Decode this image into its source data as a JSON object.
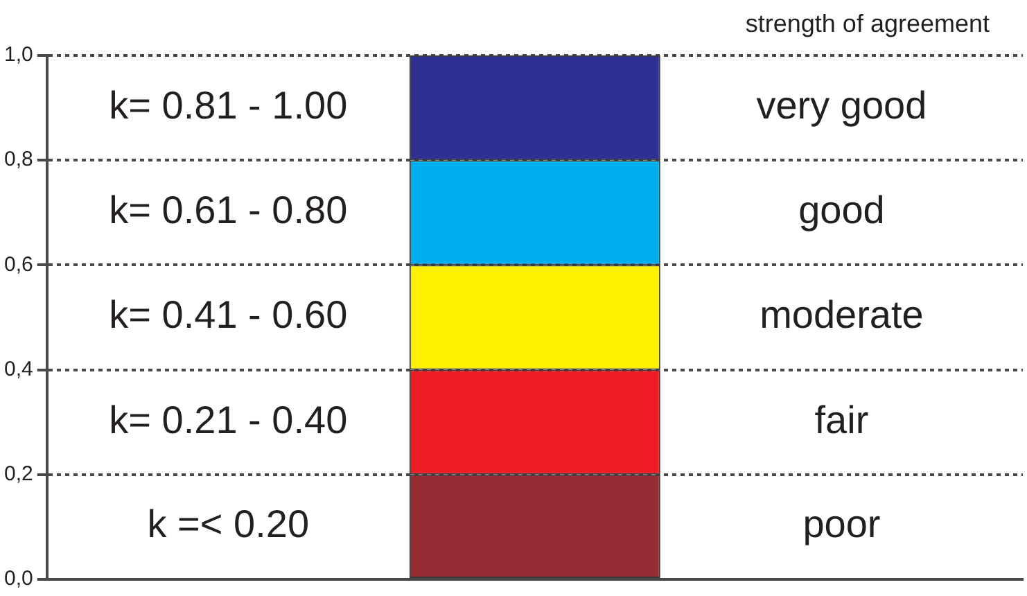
{
  "chart_data": {
    "type": "bar",
    "stacked": true,
    "title": "strength of agreement",
    "categories": [
      null
    ],
    "series": [
      {
        "name": "poor",
        "color": "#952d32",
        "values": [
          0.2
        ]
      },
      {
        "name": "fair",
        "color": "#ed1c24",
        "values": [
          0.2
        ]
      },
      {
        "name": "moderate",
        "color": "#fff200",
        "values": [
          0.2
        ]
      },
      {
        "name": "good",
        "color": "#00aeef",
        "values": [
          0.2
        ]
      },
      {
        "name": "very good",
        "color": "#2e3192",
        "values": [
          0.2
        ]
      }
    ],
    "ylim": [
      0,
      1
    ],
    "yticks": [
      {
        "value": 0,
        "label": "0,0"
      },
      {
        "value": 0.2,
        "label": "0,2"
      },
      {
        "value": 0.4,
        "label": "0,4"
      },
      {
        "value": 0.6,
        "label": "0,6"
      },
      {
        "value": 0.8,
        "label": "0,8"
      },
      {
        "value": 1,
        "label": "1,0"
      }
    ],
    "grid": "y",
    "line_style": "dotted",
    "legend": false,
    "tick_labels": "y",
    "annotations": [
      "k= 0.81 - 1.00",
      "k= 0.61 - 0.80",
      "k= 0.41 - 0.60",
      "k= 0.21 - 0.40",
      "k =< 0.20"
    ]
  }
}
